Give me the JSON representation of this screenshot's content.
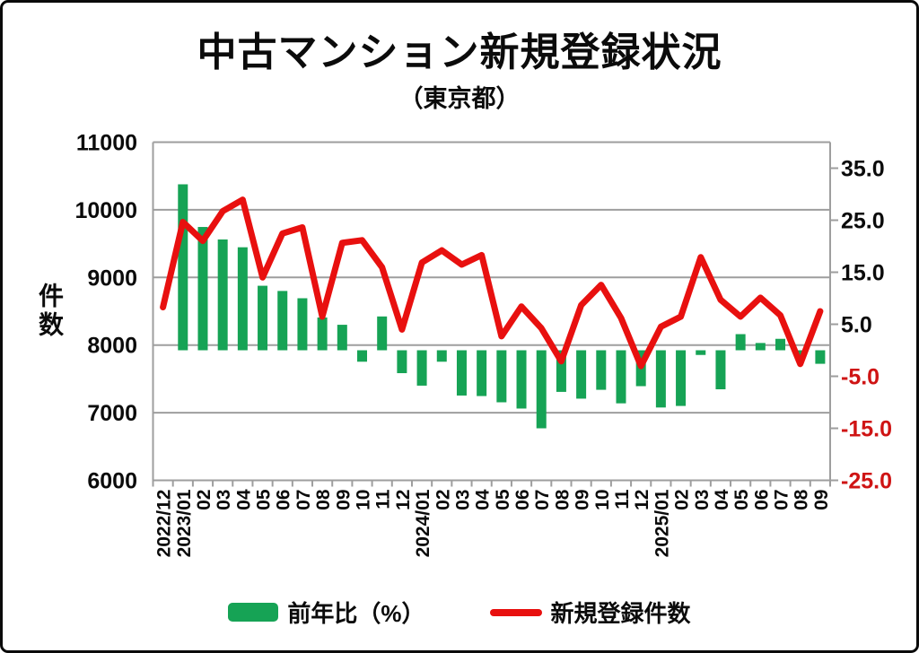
{
  "header": {
    "title": "中古マンション新規登録状況",
    "subtitle": "（東京都）"
  },
  "chart_data": {
    "type": "combo",
    "categories": [
      "2022/12",
      "2023/01",
      "02",
      "03",
      "04",
      "05",
      "06",
      "07",
      "08",
      "09",
      "10",
      "11",
      "12",
      "2024/01",
      "02",
      "03",
      "04",
      "05",
      "06",
      "07",
      "08",
      "09",
      "10",
      "11",
      "12",
      "2025/01",
      "02",
      "03",
      "04",
      "05",
      "06",
      "07",
      "08",
      "09"
    ],
    "series": [
      {
        "name": "前年比（%）",
        "type": "bar",
        "axis": "right",
        "color": "#16a355",
        "values": [
          null,
          31.9,
          23.7,
          21.3,
          19.8,
          12.4,
          11.4,
          10.0,
          6.3,
          4.9,
          -2.2,
          6.5,
          -4.4,
          -6.8,
          -2.2,
          -8.7,
          -8.8,
          -10.0,
          -11.2,
          -15.0,
          -8.0,
          -9.3,
          -7.6,
          -10.2,
          -6.9,
          -11.0,
          -10.7,
          -0.9,
          -7.5,
          3.1,
          1.4,
          2.2,
          -1.0,
          -2.6
        ]
      },
      {
        "name": "新規登録件数",
        "type": "line",
        "axis": "left",
        "color": "#e8100f",
        "values": [
          8560,
          9820,
          9540,
          9980,
          10150,
          9000,
          9650,
          9740,
          8420,
          9510,
          9550,
          9150,
          8230,
          9220,
          9400,
          9190,
          9330,
          8130,
          8570,
          8250,
          7760,
          8590,
          8890,
          8400,
          7690,
          8270,
          8420,
          9300,
          8670,
          8420,
          8700,
          8440,
          7720,
          8500
        ]
      }
    ],
    "left_axis": {
      "label": "件数",
      "min": 6000,
      "max": 11000,
      "ticks": [
        11000,
        10000,
        9000,
        8000,
        7000,
        6000
      ]
    },
    "right_axis": {
      "min": -25,
      "max": 40,
      "ticks": [
        35.0,
        25.0,
        15.0,
        5.0,
        -5.0,
        -15.0,
        -25.0
      ],
      "negative_color": "#cf1414"
    },
    "grid_color": "#9e9e9e",
    "text_color": "#0b0b0b",
    "legend_position": "bottom"
  }
}
